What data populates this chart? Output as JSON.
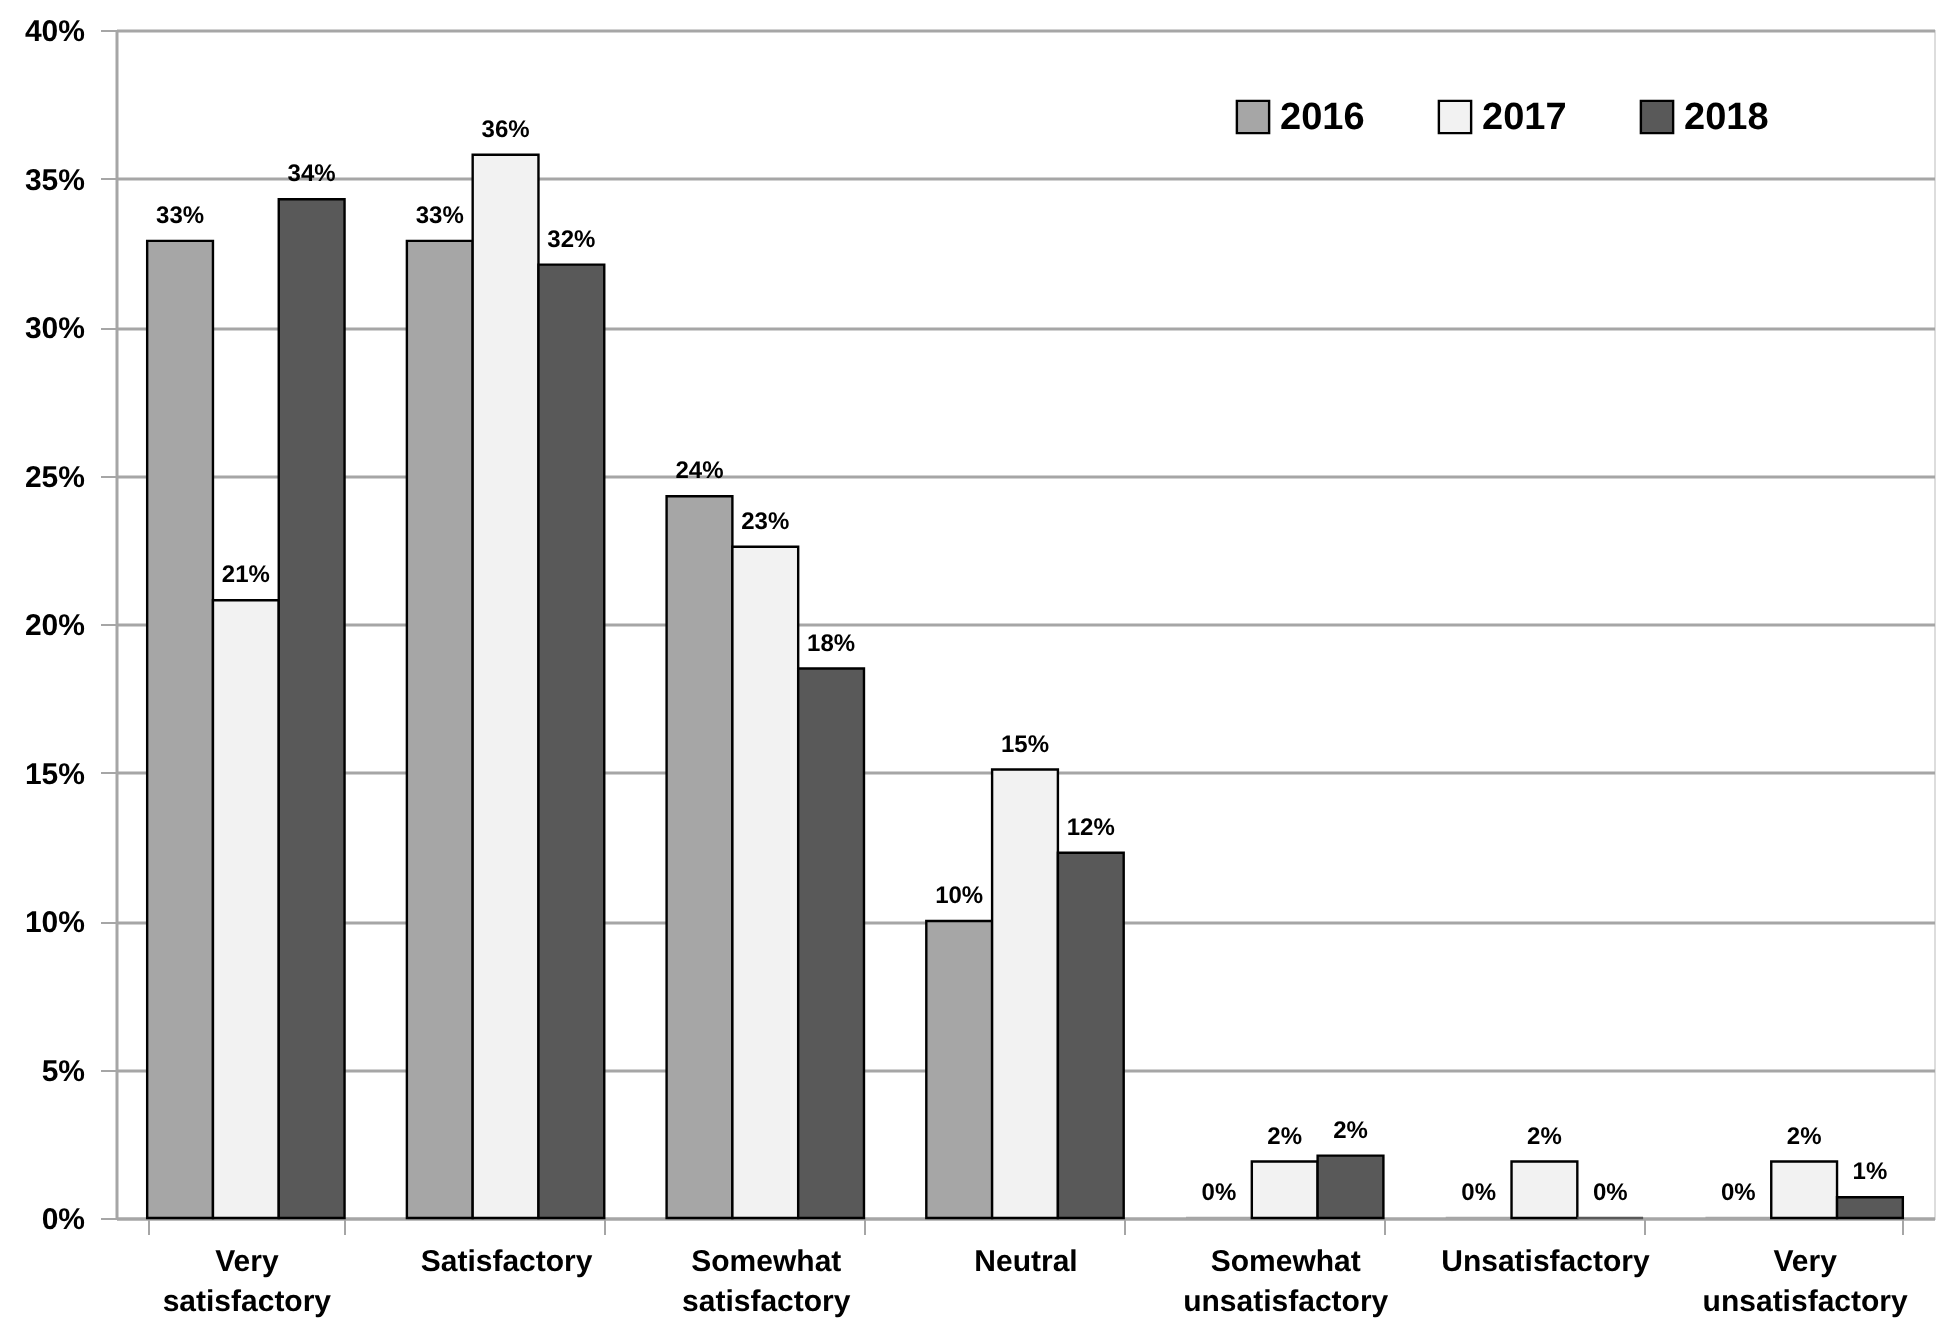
{
  "chart_data": {
    "type": "bar",
    "categories": [
      "Very satisfactory",
      "Satisfactory",
      "Somewhat satisfactory",
      "Neutral",
      "Somewhat unsatisfactory",
      "Unsatisfactory",
      "Very unsatisfactory"
    ],
    "series": [
      {
        "name": "2016",
        "color": "#a6a6a6",
        "values": [
          32.9,
          32.9,
          24.3,
          10.0,
          0,
          0,
          0
        ],
        "value_labels": [
          "33%",
          "33%",
          "24%",
          "10%",
          "0%",
          "0%",
          "0%"
        ]
      },
      {
        "name": "2017",
        "color": "#f2f2f2",
        "values": [
          20.8,
          35.8,
          22.6,
          15.1,
          1.9,
          1.9,
          1.9
        ],
        "value_labels": [
          "21%",
          "36%",
          "23%",
          "15%",
          "2%",
          "2%",
          "2%"
        ]
      },
      {
        "name": "2018",
        "color": "#595959",
        "values": [
          34.3,
          32.1,
          18.5,
          12.3,
          2.1,
          0,
          0.7
        ],
        "value_labels": [
          "34%",
          "32%",
          "18%",
          "12%",
          "2%",
          "0%",
          "1%"
        ]
      }
    ],
    "ylim": [
      0,
      40
    ],
    "yticks": [
      {
        "value": 0,
        "label": "0%"
      },
      {
        "value": 5,
        "label": "5%"
      },
      {
        "value": 10,
        "label": "10%"
      },
      {
        "value": 15,
        "label": "15%"
      },
      {
        "value": 20,
        "label": "20%"
      },
      {
        "value": 25,
        "label": "25%"
      },
      {
        "value": 30,
        "label": "30%"
      },
      {
        "value": 35,
        "label": "35%"
      },
      {
        "value": 40,
        "label": "40%"
      }
    ],
    "grid": "y",
    "legend": "top right"
  }
}
